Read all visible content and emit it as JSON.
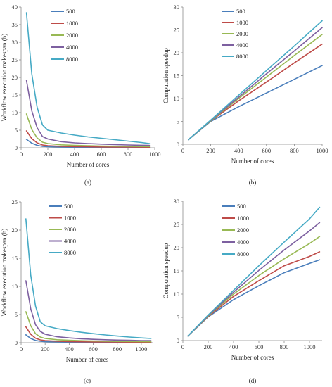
{
  "chart_data": [
    {
      "type": "line",
      "panel_label": "(a)",
      "xlabel": "Number of cores",
      "ylabel": "Workflow execution makespan (h)",
      "xlim": [
        0,
        1000
      ],
      "ylim": [
        0,
        40
      ],
      "xticks": [
        0,
        200,
        400,
        600,
        800,
        1000
      ],
      "yticks": [
        0,
        5,
        10,
        15,
        20,
        25,
        30,
        35,
        40
      ],
      "grid": false,
      "legend_position": "top-left",
      "x": [
        40,
        80,
        120,
        160,
        200,
        300,
        400,
        500,
        600,
        700,
        800,
        900,
        960
      ],
      "series": [
        {
          "name": "500",
          "color": "#4a7ebb",
          "values": [
            2.4,
            1.3,
            0.7,
            0.4,
            0.3,
            0.2,
            0.15,
            0.12,
            0.1,
            0.08,
            0.07,
            0.06,
            0.06
          ]
        },
        {
          "name": "1000",
          "color": "#be4b48",
          "values": [
            4.8,
            2.6,
            1.4,
            0.8,
            0.6,
            0.42,
            0.35,
            0.3,
            0.25,
            0.22,
            0.2,
            0.18,
            0.17
          ]
        },
        {
          "name": "2000",
          "color": "#98b954",
          "values": [
            9.6,
            5.2,
            2.8,
            1.6,
            1.2,
            0.85,
            0.7,
            0.6,
            0.5,
            0.45,
            0.4,
            0.36,
            0.34
          ]
        },
        {
          "name": "4000",
          "color": "#7d60a0",
          "values": [
            19.2,
            10.5,
            5.7,
            3.2,
            2.5,
            1.75,
            1.4,
            1.2,
            1.05,
            0.9,
            0.8,
            0.72,
            0.68
          ]
        },
        {
          "name": "8000",
          "color": "#46aac5",
          "values": [
            38.4,
            21,
            11.5,
            6.5,
            5.0,
            4.2,
            3.6,
            3.1,
            2.7,
            2.3,
            1.9,
            1.5,
            1.2
          ]
        }
      ]
    },
    {
      "type": "line",
      "panel_label": "(b)",
      "xlabel": "Number of cores",
      "ylabel": "Computation speedup",
      "xlim": [
        0,
        1000
      ],
      "ylim": [
        0,
        30
      ],
      "xticks": [
        0,
        200,
        400,
        600,
        800,
        1000
      ],
      "yticks": [
        0,
        5,
        10,
        15,
        20,
        25,
        30
      ],
      "grid": false,
      "legend_position": "top-right",
      "x": [
        40,
        200,
        400,
        600,
        800,
        1000
      ],
      "series": [
        {
          "name": "500",
          "color": "#4a7ebb",
          "values": [
            1,
            5.0,
            8.2,
            11.2,
            14.2,
            17.2
          ]
        },
        {
          "name": "1000",
          "color": "#be4b48",
          "values": [
            1,
            5.1,
            9.5,
            13.6,
            17.8,
            21.9
          ]
        },
        {
          "name": "2000",
          "color": "#98b954",
          "values": [
            1,
            5.1,
            10.0,
            14.7,
            19.4,
            24.0
          ]
        },
        {
          "name": "4000",
          "color": "#7d60a0",
          "values": [
            1,
            5.2,
            10.3,
            15.4,
            20.4,
            25.5
          ]
        },
        {
          "name": "8000",
          "color": "#46aac5",
          "values": [
            1,
            5.3,
            10.7,
            16.1,
            21.5,
            27.0
          ]
        }
      ]
    },
    {
      "type": "line",
      "panel_label": "(c)",
      "xlabel": "Number of cores",
      "ylabel": "Workflow execution makespan (h)",
      "xlim": [
        0,
        1100
      ],
      "ylim": [
        0,
        25
      ],
      "xticks": [
        0,
        200,
        400,
        600,
        800,
        1000
      ],
      "yticks": [
        0,
        5,
        10,
        15,
        20,
        25
      ],
      "grid": false,
      "legend_position": "top-left",
      "x": [
        40,
        80,
        120,
        160,
        200,
        300,
        400,
        500,
        600,
        700,
        800,
        900,
        1000,
        1080
      ],
      "series": [
        {
          "name": "500",
          "color": "#4a7ebb",
          "values": [
            1.4,
            0.75,
            0.4,
            0.25,
            0.18,
            0.12,
            0.09,
            0.07,
            0.06,
            0.05,
            0.05,
            0.04,
            0.04,
            0.04
          ]
        },
        {
          "name": "1000",
          "color": "#be4b48",
          "values": [
            2.8,
            1.5,
            0.8,
            0.5,
            0.38,
            0.26,
            0.2,
            0.16,
            0.14,
            0.12,
            0.11,
            0.1,
            0.09,
            0.09
          ]
        },
        {
          "name": "2000",
          "color": "#98b954",
          "values": [
            5.5,
            3.0,
            1.6,
            1.0,
            0.75,
            0.52,
            0.42,
            0.35,
            0.3,
            0.26,
            0.23,
            0.21,
            0.19,
            0.18
          ]
        },
        {
          "name": "4000",
          "color": "#7d60a0",
          "values": [
            11.0,
            6.0,
            3.2,
            2.0,
            1.5,
            1.05,
            0.85,
            0.7,
            0.6,
            0.52,
            0.46,
            0.42,
            0.38,
            0.36
          ]
        },
        {
          "name": "8000",
          "color": "#46aac5",
          "values": [
            22.0,
            12.0,
            6.5,
            3.7,
            3.0,
            2.5,
            2.15,
            1.85,
            1.6,
            1.38,
            1.18,
            1.0,
            0.85,
            0.75
          ]
        }
      ]
    },
    {
      "type": "line",
      "panel_label": "(d)",
      "xlabel": "Number of cores",
      "ylabel": "Computation speedup",
      "xlim": [
        0,
        1100
      ],
      "ylim": [
        0,
        30
      ],
      "xticks": [
        0,
        200,
        400,
        600,
        800,
        1000
      ],
      "yticks": [
        0,
        5,
        10,
        15,
        20,
        25,
        30
      ],
      "grid": false,
      "legend_position": "top-left",
      "x": [
        40,
        200,
        400,
        600,
        800,
        1000,
        1080
      ],
      "series": [
        {
          "name": "500",
          "color": "#4a7ebb",
          "values": [
            1,
            5.1,
            8.8,
            11.8,
            14.6,
            16.6,
            17.4
          ]
        },
        {
          "name": "1000",
          "color": "#be4b48",
          "values": [
            1,
            5.2,
            9.5,
            12.9,
            16.1,
            18.1,
            19.1
          ]
        },
        {
          "name": "2000",
          "color": "#98b954",
          "values": [
            1,
            5.3,
            10.0,
            14.0,
            17.6,
            20.9,
            22.4
          ]
        },
        {
          "name": "4000",
          "color": "#7d60a0",
          "values": [
            1,
            5.4,
            10.4,
            15.1,
            19.5,
            23.6,
            25.4
          ]
        },
        {
          "name": "8000",
          "color": "#46aac5",
          "values": [
            1,
            5.5,
            10.8,
            16.1,
            21.2,
            26.2,
            28.7
          ]
        }
      ]
    }
  ]
}
